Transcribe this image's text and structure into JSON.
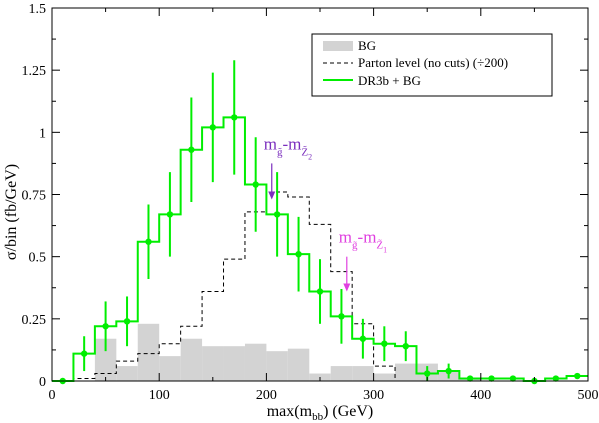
{
  "chart_data": {
    "type": "line",
    "xlabel": "max(m",
    "xlabel_sub": "bb",
    "xlabel_tail": ") (GeV)",
    "ylabel": "σ/bin (fb/GeV)",
    "xlim": [
      0,
      500
    ],
    "ylim": [
      0,
      1.5
    ],
    "xticks": [
      0,
      100,
      200,
      300,
      400,
      500
    ],
    "yticks": [
      0,
      0.25,
      0.5,
      0.75,
      1,
      1.25,
      1.5
    ],
    "ytick_labels": [
      "0",
      "0.25",
      "0.5",
      "0.75",
      "1",
      "1.25",
      "1.5"
    ],
    "bin_edges": [
      0,
      20,
      40,
      60,
      80,
      100,
      120,
      140,
      160,
      180,
      200,
      220,
      240,
      260,
      280,
      300,
      320,
      340,
      360,
      380,
      400,
      420,
      440,
      460,
      480,
      500
    ],
    "legend": {
      "position": "top-right",
      "entries": [
        {
          "label": "BG",
          "style": "fill",
          "color": "#d3d3d3"
        },
        {
          "label": "Parton level (no cuts) (÷200)",
          "style": "dashed",
          "color": "#000000"
        },
        {
          "label": "DR3b + BG",
          "style": "solid",
          "color": "#00ee00"
        }
      ]
    },
    "series": [
      {
        "name": "BG",
        "color": "#d3d3d3",
        "values": [
          0,
          0,
          0.17,
          0.06,
          0.23,
          0.1,
          0.17,
          0.14,
          0.14,
          0.15,
          0.12,
          0.13,
          0.03,
          0.06,
          0.06,
          0.03,
          0.07,
          0.07,
          0.04,
          0.01,
          0,
          0,
          0,
          0,
          0
        ]
      },
      {
        "name": "Parton level (no cuts) (÷200)",
        "color": "#000000",
        "values": [
          0,
          0.01,
          0.03,
          0.08,
          0.11,
          0.15,
          0.22,
          0.36,
          0.49,
          0.68,
          0.76,
          0.74,
          0.63,
          0.44,
          0.23,
          0.06,
          0,
          0,
          0,
          0,
          0,
          0,
          0,
          0,
          0
        ]
      },
      {
        "name": "DR3b + BG",
        "color": "#00ee00",
        "x": [
          10,
          30,
          50,
          70,
          90,
          110,
          130,
          150,
          170,
          190,
          210,
          230,
          250,
          270,
          290,
          310,
          330,
          350,
          370,
          390,
          410,
          430,
          450,
          470,
          490
        ],
        "values": [
          0,
          0.11,
          0.22,
          0.24,
          0.56,
          0.67,
          0.93,
          1.02,
          1.06,
          0.79,
          0.67,
          0.51,
          0.36,
          0.26,
          0.17,
          0.15,
          0.14,
          0.03,
          0.04,
          0.01,
          0.01,
          0.01,
          0.0,
          0.01,
          0.02
        ],
        "errors": [
          0,
          0.07,
          0.1,
          0.1,
          0.15,
          0.17,
          0.21,
          0.22,
          0.23,
          0.19,
          0.17,
          0.15,
          0.13,
          0.11,
          0.08,
          0.07,
          0.06,
          0.03,
          0.03,
          0.01,
          0.01,
          0.01,
          0.01,
          0.01,
          0.01
        ]
      }
    ],
    "annotations": [
      {
        "label_main": "m",
        "label_sub": "g̃",
        "label_dash": "-m",
        "label_sub2": "Z̃",
        "label_subsub2": "2",
        "x": 205,
        "arrow_top": 0.875,
        "arrow_tip": 0.73,
        "color": "#7b2fbe"
      },
      {
        "label_main": "m",
        "label_sub": "g̃",
        "label_dash": "-m",
        "label_sub2": "Z̃",
        "label_subsub2": "1",
        "x": 275,
        "arrow_top": 0.5,
        "arrow_tip": 0.36,
        "color": "#e040e0"
      }
    ]
  }
}
